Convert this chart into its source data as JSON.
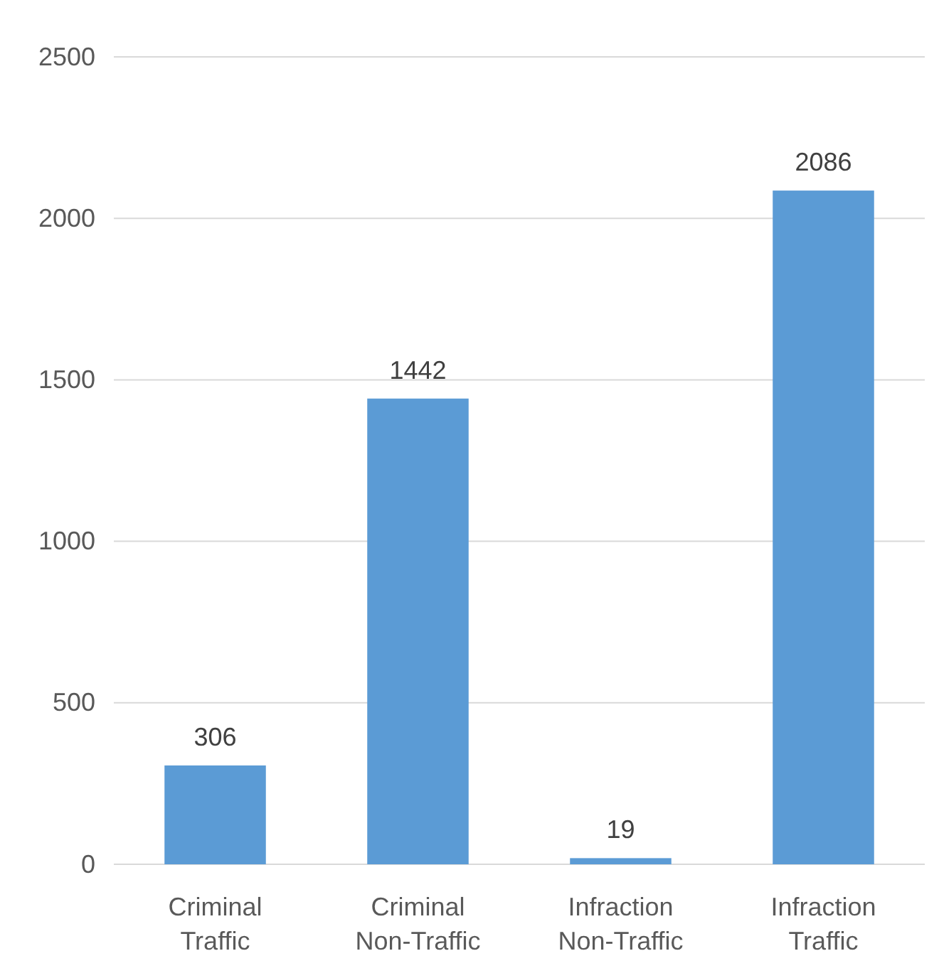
{
  "chart_data": {
    "type": "bar",
    "categories": [
      "Criminal Traffic",
      "Criminal Non-Traffic",
      "Infraction Non-Traffic",
      "Infraction Traffic"
    ],
    "values": [
      306,
      1442,
      19,
      2086
    ],
    "color": "#5b9bd5",
    "ylim": [
      0,
      2500
    ],
    "yticks": [
      0,
      500,
      1000,
      1500,
      2000,
      2500
    ],
    "grid": "y",
    "data_labels": true
  }
}
